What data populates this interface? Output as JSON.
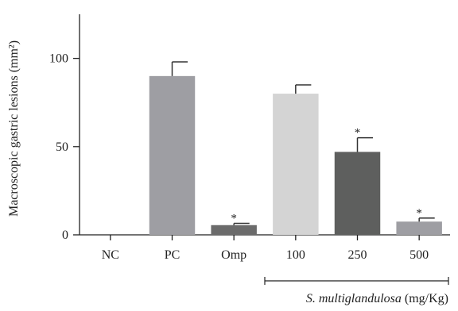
{
  "chart_data": {
    "type": "bar",
    "title": "",
    "xlabel": "",
    "ylabel": "Macroscopic gastric lesions (mm²)",
    "ylim": [
      0,
      125
    ],
    "yticks": [
      0,
      50,
      100
    ],
    "grid": false,
    "categories": [
      "NC",
      "PC",
      "Omp",
      "100",
      "250",
      "500"
    ],
    "values": [
      0,
      90,
      5.5,
      80,
      47,
      7.5
    ],
    "errors": [
      0,
      8,
      1,
      5,
      8,
      2
    ],
    "significant": [
      false,
      false,
      true,
      false,
      true,
      true
    ],
    "significance_marker": "*",
    "colors": [
      "#9e9ea3",
      "#9e9ea3",
      "#6b6b6b",
      "#d4d4d4",
      "#5e5f5e",
      "#9e9ea3"
    ],
    "group_label": {
      "prefix_italic": "S. multiglandulosa",
      "suffix": " (mg/Kg)",
      "spans_categories": [
        "100",
        "250",
        "500"
      ]
    }
  }
}
